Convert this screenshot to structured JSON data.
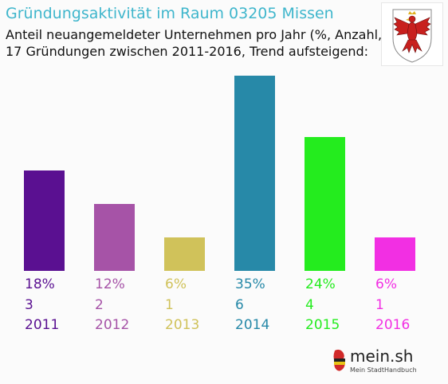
{
  "header": {
    "title": "Gründungsaktivität im Raum 03205 Missen",
    "subtitle1": "Anteil neuangemeldeter Unternehmen pro Jahr (%, Anzahl, Jahr)",
    "subtitle2": "17 Gründungen zwischen 2011-2016, Trend aufsteigend:"
  },
  "logo": {
    "name": "mein.sh",
    "tagline": "Mein StadtHandbuch"
  },
  "colors": {
    "title": "#3fb6cc"
  },
  "chart_data": {
    "type": "bar",
    "categories": [
      "2011",
      "2012",
      "2013",
      "2014",
      "2015",
      "2016"
    ],
    "values": [
      18,
      12,
      6,
      35,
      24,
      6
    ],
    "percent_labels": [
      "18%",
      "12%",
      "6%",
      "35%",
      "24%",
      "6%"
    ],
    "counts": [
      3,
      2,
      1,
      6,
      4,
      1
    ],
    "colors": [
      "#5a1091",
      "#a653a7",
      "#d0c25a",
      "#2789a8",
      "#24ec1e",
      "#f22fe3"
    ],
    "ylim": [
      0,
      35
    ],
    "total": 17
  }
}
